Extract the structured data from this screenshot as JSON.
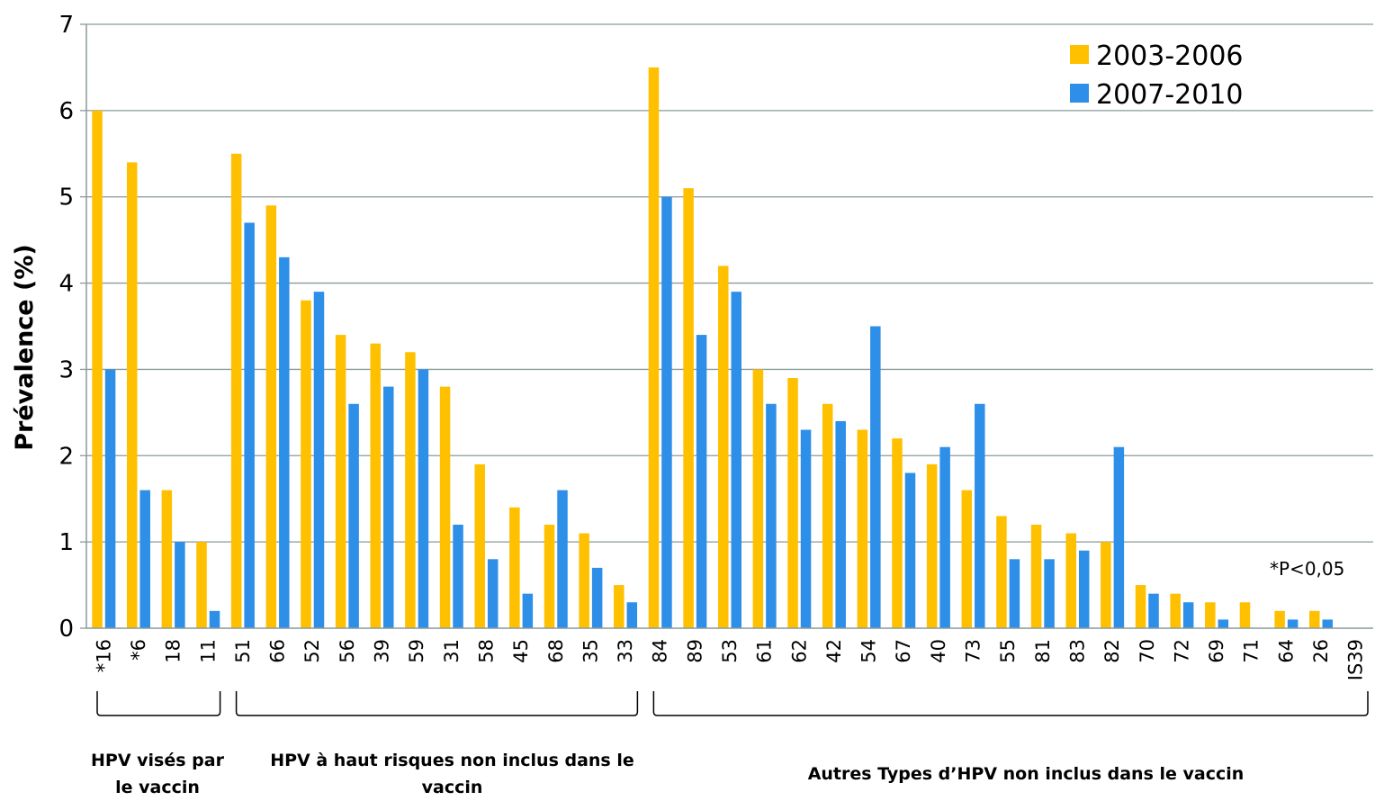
{
  "chart_data": {
    "type": "bar",
    "ylabel": "Prévalence (%)",
    "ylim": [
      0,
      7
    ],
    "yticks": [
      "0",
      "1",
      "2",
      "3",
      "4",
      "5",
      "6",
      "7"
    ],
    "grid": true,
    "legend_position": "top-right",
    "categories": [
      "*16",
      "*6",
      "18",
      "11",
      "51",
      "66",
      "52",
      "56",
      "39",
      "59",
      "31",
      "58",
      "45",
      "68",
      "35",
      "33",
      "84",
      "89",
      "53",
      "61",
      "62",
      "42",
      "54",
      "67",
      "40",
      "73",
      "55",
      "81",
      "83",
      "82",
      "70",
      "72",
      "69",
      "71",
      "64",
      "26",
      "IS39"
    ],
    "series": [
      {
        "name": "2003-2006",
        "color": "#FFC000",
        "values": [
          6.0,
          5.4,
          1.6,
          1.0,
          5.5,
          4.9,
          3.8,
          3.4,
          3.3,
          3.2,
          2.8,
          1.9,
          1.4,
          1.2,
          1.1,
          0.5,
          6.5,
          5.1,
          4.2,
          3.0,
          2.9,
          2.6,
          2.3,
          2.2,
          1.9,
          1.6,
          1.3,
          1.2,
          1.1,
          1.0,
          0.5,
          0.4,
          0.3,
          0.3,
          0.2,
          0.2,
          0.0
        ]
      },
      {
        "name": "2007-2010",
        "color": "#2E8FE8",
        "values": [
          3.0,
          1.6,
          1.0,
          0.2,
          4.7,
          4.3,
          3.9,
          2.6,
          2.8,
          3.0,
          1.2,
          0.8,
          0.4,
          1.6,
          0.7,
          0.3,
          5.0,
          3.4,
          3.9,
          2.6,
          2.3,
          2.4,
          3.5,
          1.8,
          2.1,
          2.6,
          0.8,
          0.8,
          0.9,
          2.1,
          0.4,
          0.3,
          0.1,
          0.0,
          0.1,
          0.1,
          0.0
        ]
      }
    ],
    "annotation": "*P<0,05",
    "groups": [
      {
        "label": "HPV visés par le vaccin",
        "from": 0,
        "to": 3
      },
      {
        "label": "HPV à haut risques non inclus dans le vaccin",
        "from": 4,
        "to": 15
      },
      {
        "label": "Autres Types d’HPV non inclus dans le vaccin",
        "from": 16,
        "to": 36
      }
    ]
  }
}
